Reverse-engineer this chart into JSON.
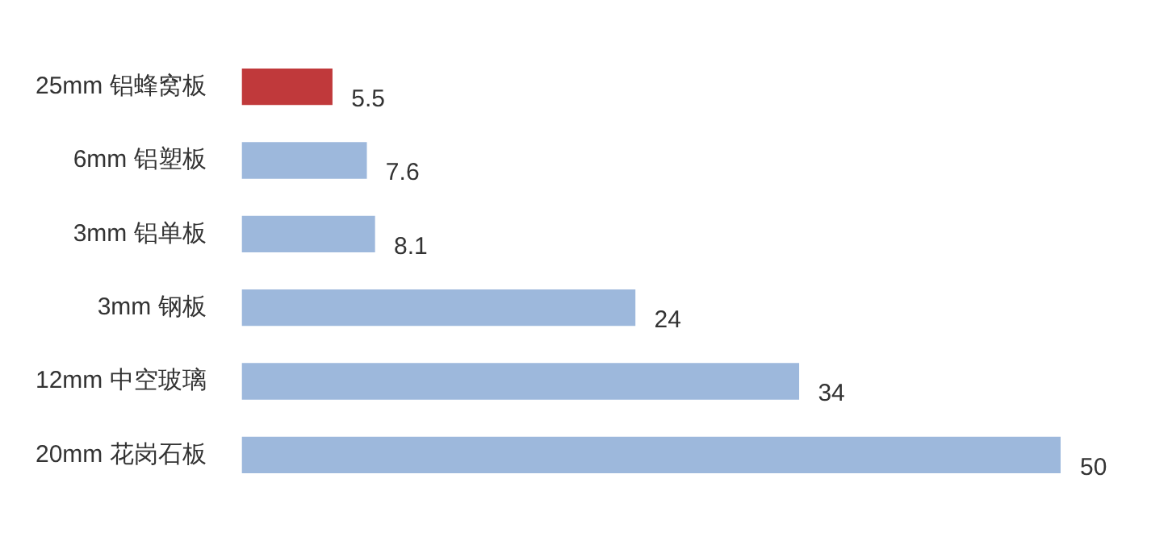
{
  "chart_data": {
    "type": "bar",
    "orientation": "horizontal",
    "categories": [
      "25mm 铝蜂窝板",
      "6mm 铝塑板",
      "3mm 铝单板",
      "3mm 钢板",
      "12mm 中空玻璃",
      "20mm 花岗石板"
    ],
    "values": [
      5.5,
      7.6,
      8.1,
      24,
      34,
      50
    ],
    "colors": [
      "#c0393b",
      "#9db8dc",
      "#9db8dc",
      "#9db8dc",
      "#9db8dc",
      "#9db8dc"
    ],
    "data_labels": true
  }
}
